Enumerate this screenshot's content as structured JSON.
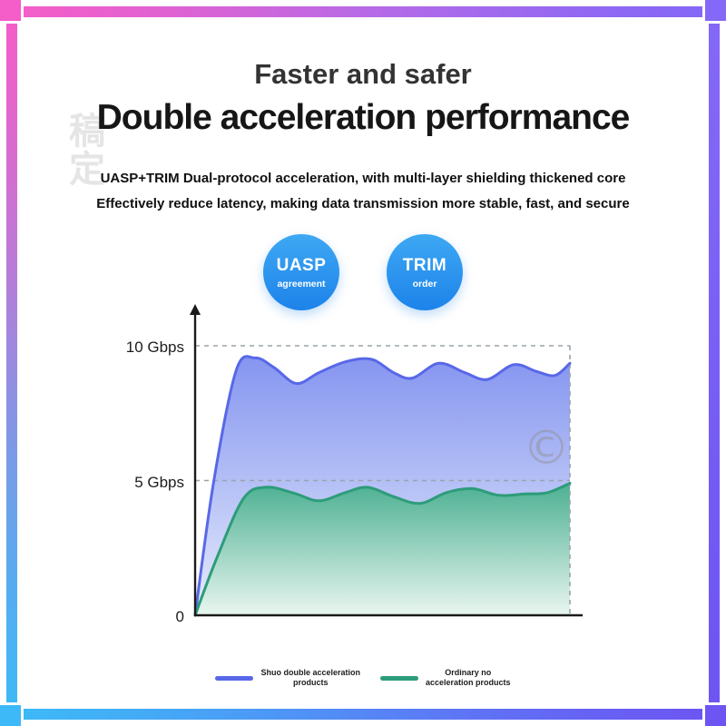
{
  "watermark": {
    "brand": "稿定",
    "copyright_symbol": "©"
  },
  "header": {
    "title": "Faster and safer",
    "subtitle": "Double acceleration performance",
    "description": [
      "UASP+TRIM Dual-protocol acceleration, with multi-layer shielding thickened core",
      "Effectively reduce latency, making data transmission more stable, fast, and secure"
    ]
  },
  "badges": [
    {
      "title": "UASP",
      "subtitle": "agreement"
    },
    {
      "title": "TRIM",
      "subtitle": "order"
    }
  ],
  "accent_colors": {
    "badge_blue": "#1e84ea",
    "frame_top_left": "#f55dc8",
    "frame_top_right": "#8468f7",
    "frame_bottom_left": "#3db9f7",
    "frame_bottom_right": "#6d55f3"
  },
  "chart_data": {
    "type": "area",
    "title": "",
    "xlabel": "",
    "ylabel": "Gbps",
    "ylim": [
      0,
      10.7
    ],
    "grid": "dashed-horizontal",
    "legend_position": "bottom",
    "yticks": [
      {
        "value": 10,
        "label": "10 Gbps"
      },
      {
        "value": 5,
        "label": "5 Gbps"
      },
      {
        "value": 0,
        "label": "0"
      }
    ],
    "dashed_levels": [
      10,
      5
    ],
    "right_boundary_dashed": true,
    "series": [
      {
        "name": "Shuo double acceleration products",
        "line_color": "#5868e8",
        "fill_top": "#8595f0",
        "fill_bottom": "#e6ecfb",
        "points": [
          [
            0,
            0
          ],
          [
            0.05,
            5.0
          ],
          [
            0.11,
            9.1
          ],
          [
            0.16,
            9.55
          ],
          [
            0.21,
            9.2
          ],
          [
            0.27,
            8.6
          ],
          [
            0.33,
            9.0
          ],
          [
            0.4,
            9.4
          ],
          [
            0.47,
            9.5
          ],
          [
            0.53,
            9.0
          ],
          [
            0.58,
            8.8
          ],
          [
            0.65,
            9.35
          ],
          [
            0.72,
            9.0
          ],
          [
            0.78,
            8.75
          ],
          [
            0.85,
            9.3
          ],
          [
            0.91,
            9.05
          ],
          [
            0.96,
            8.9
          ],
          [
            1,
            9.35
          ]
        ]
      },
      {
        "name": "Ordinary no acceleration products",
        "line_color": "#2d9c7a",
        "fill_top": "#4cb092",
        "fill_bottom": "#e9f6f0",
        "points": [
          [
            0,
            0
          ],
          [
            0.06,
            2.2
          ],
          [
            0.13,
            4.35
          ],
          [
            0.19,
            4.75
          ],
          [
            0.26,
            4.55
          ],
          [
            0.33,
            4.25
          ],
          [
            0.4,
            4.55
          ],
          [
            0.46,
            4.75
          ],
          [
            0.53,
            4.4
          ],
          [
            0.6,
            4.15
          ],
          [
            0.67,
            4.55
          ],
          [
            0.74,
            4.7
          ],
          [
            0.81,
            4.45
          ],
          [
            0.88,
            4.5
          ],
          [
            0.94,
            4.55
          ],
          [
            1,
            4.9
          ]
        ]
      }
    ],
    "legend": [
      {
        "lines": [
          "Shuo double acceleration",
          "products"
        ]
      },
      {
        "lines": [
          "Ordinary no",
          "acceleration products"
        ]
      }
    ]
  }
}
